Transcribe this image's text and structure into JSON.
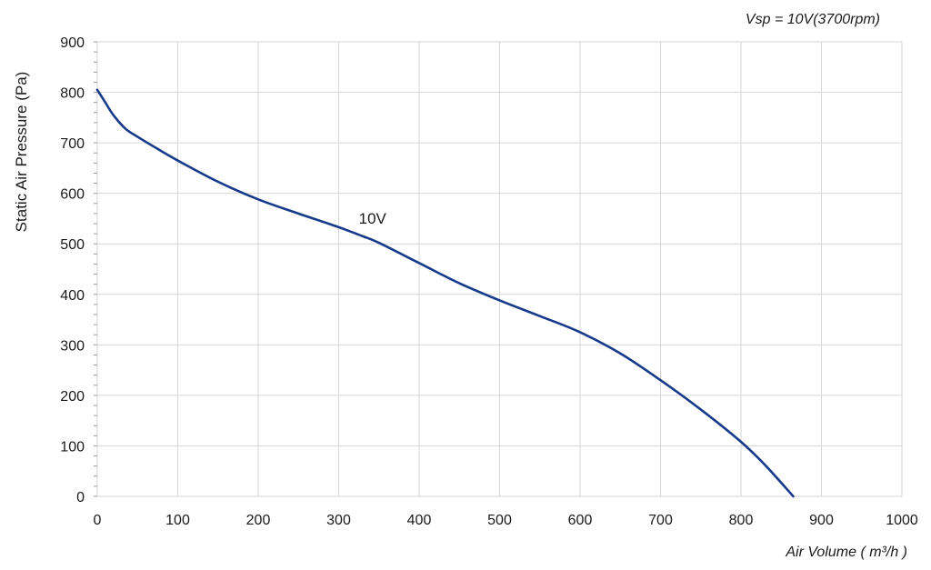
{
  "chart_data": {
    "type": "line",
    "title": "",
    "xlabel": "Air Volume ( m³/h )",
    "ylabel": "Static Air Pressure  (Pa)",
    "annotation": "Vsp = 10V(3700rpm)",
    "xlim": [
      0,
      1000
    ],
    "ylim": [
      0,
      900
    ],
    "xticks": [
      0,
      100,
      200,
      300,
      400,
      500,
      600,
      700,
      800,
      900,
      1000
    ],
    "yticks": [
      0,
      100,
      200,
      300,
      400,
      500,
      600,
      700,
      800,
      900
    ],
    "grid": true,
    "series": [
      {
        "name": "10V",
        "label_at": [
          325,
          540
        ],
        "color": "#173b8a",
        "x": [
          0,
          10,
          20,
          35,
          50,
          75,
          100,
          150,
          200,
          250,
          300,
          330,
          350,
          400,
          450,
          500,
          550,
          600,
          650,
          700,
          750,
          800,
          830,
          865
        ],
        "y": [
          805,
          780,
          755,
          728,
          712,
          688,
          665,
          623,
          588,
          560,
          533,
          515,
          502,
          462,
          422,
          388,
          357,
          325,
          283,
          230,
          172,
          108,
          62,
          0
        ]
      }
    ]
  }
}
